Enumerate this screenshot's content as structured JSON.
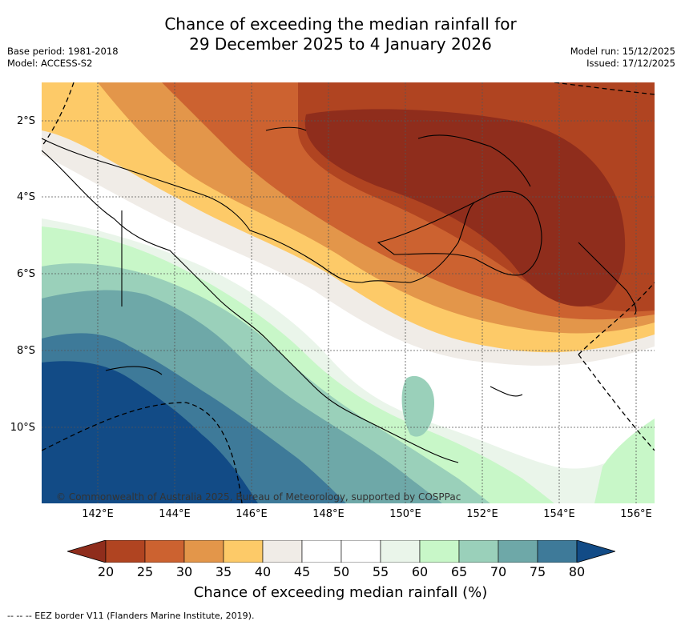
{
  "title": {
    "line1": "Chance of exceeding the median rainfall for",
    "line2": "29 December 2025 to 4 January 2026"
  },
  "meta_left": {
    "base_period": "Base period: 1981-2018",
    "model": "Model: ACCESS-S2"
  },
  "meta_right": {
    "model_run": "Model run: 15/12/2025",
    "issued": "Issued: 17/12/2025"
  },
  "map": {
    "lat_labels": [
      "2°S",
      "4°S",
      "6°S",
      "8°S",
      "10°S"
    ],
    "lon_labels": [
      "142°E",
      "144°E",
      "146°E",
      "148°E",
      "150°E",
      "152°E",
      "154°E",
      "156°E"
    ],
    "copyright": "© Commonwealth of Australia 2025, Bureau of Meteorology, supported by COSPPac"
  },
  "colorbar": {
    "ticks": [
      "20",
      "25",
      "30",
      "35",
      "40",
      "45",
      "50",
      "55",
      "60",
      "65",
      "70",
      "75",
      "80"
    ],
    "colors": [
      "#8f2d1c",
      "#b04421",
      "#cc6230",
      "#e3964a",
      "#fdca68",
      "#f0ece7",
      "#ffffff",
      "#ffffff",
      "#eaf5ea",
      "#c8f7c8",
      "#9ad0ba",
      "#6ea8a8",
      "#3e7a99",
      "#124b86"
    ],
    "label": "Chance of exceeding median rainfall (%)"
  },
  "footer": "--  --  -- EEZ border V11 (Flanders Marine Institute, 2019)."
}
